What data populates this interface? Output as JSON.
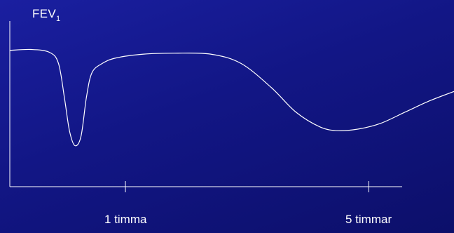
{
  "chart_data": {
    "type": "line",
    "ylabel": {
      "text": "FEV",
      "subscript": "1"
    },
    "xlabel": "",
    "x_ticks": [
      {
        "label": "1 timma",
        "x": 1
      },
      {
        "label": "5 timmar",
        "x": 5
      }
    ],
    "xlim": [
      -0.9,
      6.4
    ],
    "ylim": [
      0,
      1
    ],
    "series": [
      {
        "points": [
          [
            -0.9,
            0.73
          ],
          [
            -0.55,
            0.735
          ],
          [
            -0.25,
            0.72
          ],
          [
            -0.1,
            0.66
          ],
          [
            0.0,
            0.47
          ],
          [
            0.08,
            0.3
          ],
          [
            0.17,
            0.22
          ],
          [
            0.27,
            0.27
          ],
          [
            0.36,
            0.48
          ],
          [
            0.45,
            0.61
          ],
          [
            0.62,
            0.66
          ],
          [
            0.85,
            0.69
          ],
          [
            1.3,
            0.71
          ],
          [
            1.8,
            0.715
          ],
          [
            2.4,
            0.71
          ],
          [
            2.9,
            0.66
          ],
          [
            3.4,
            0.53
          ],
          [
            3.8,
            0.4
          ],
          [
            4.2,
            0.32
          ],
          [
            4.5,
            0.3
          ],
          [
            4.85,
            0.31
          ],
          [
            5.2,
            0.34
          ],
          [
            5.6,
            0.4
          ],
          [
            6.0,
            0.46
          ],
          [
            6.4,
            0.51
          ]
        ]
      }
    ],
    "colors": {
      "line": "#ffffff",
      "axis": "#ffffff"
    },
    "grid": false
  }
}
